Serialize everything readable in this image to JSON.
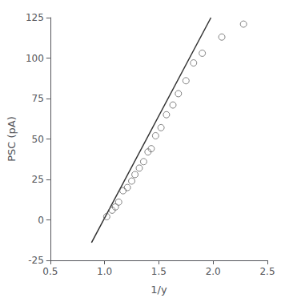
{
  "chart_data": {
    "type": "scatter",
    "xlabel": "1/y",
    "ylabel": "PSC (pA)",
    "series": [
      {
        "type": "line",
        "color": "#333333",
        "x": [
          0.88,
          1.98
        ],
        "values": [
          -14,
          125
        ]
      },
      {
        "type": "scatter",
        "color": "#666666",
        "marker": "circle",
        "x": [
          1.02,
          1.07,
          1.1,
          1.13,
          1.17,
          1.21,
          1.25,
          1.28,
          1.32,
          1.36,
          1.4,
          1.43,
          1.47,
          1.52,
          1.57,
          1.63,
          1.68,
          1.75,
          1.82,
          1.9,
          2.08,
          2.28
        ],
        "values": [
          2,
          6,
          8,
          11,
          18,
          20,
          24,
          28,
          32,
          36,
          42,
          44,
          52,
          57,
          65,
          71,
          78,
          86,
          97,
          103,
          113,
          121
        ]
      }
    ],
    "xlim": [
      0.5,
      2.5
    ],
    "xticks": [
      0.5,
      1.0,
      1.5,
      2.0,
      2.5
    ],
    "ylim": [
      -25,
      125
    ],
    "yticks": [
      -25,
      0,
      25,
      50,
      75,
      100,
      125
    ],
    "grid": false
  }
}
